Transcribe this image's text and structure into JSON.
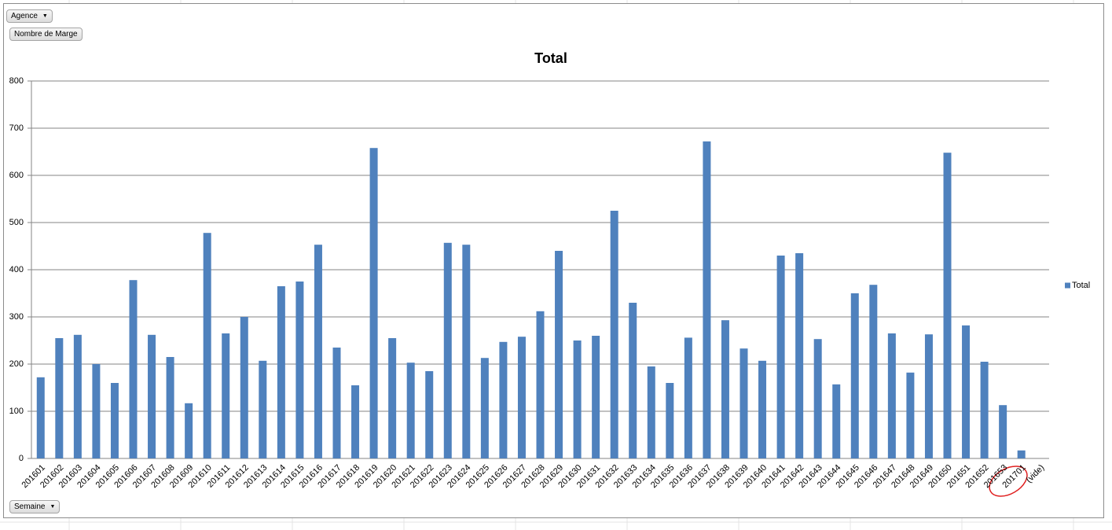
{
  "field_buttons": {
    "filter": "Agence",
    "values": "Nombre de Marge",
    "axis": "Semaine"
  },
  "chart_data": {
    "type": "bar",
    "title": "Total",
    "categories": [
      "201601",
      "201602",
      "201603",
      "201604",
      "201605",
      "201606",
      "201607",
      "201608",
      "201609",
      "201610",
      "201611",
      "201612",
      "201613",
      "201614",
      "201615",
      "201616",
      "201617",
      "201618",
      "201619",
      "201620",
      "201621",
      "201622",
      "201623",
      "201624",
      "201625",
      "201626",
      "201627",
      "201628",
      "201629",
      "201630",
      "201631",
      "201632",
      "201633",
      "201634",
      "201635",
      "201636",
      "201637",
      "201638",
      "201639",
      "201640",
      "201641",
      "201642",
      "201643",
      "201644",
      "201645",
      "201646",
      "201647",
      "201648",
      "201649",
      "201650",
      "201651",
      "201652",
      "201653",
      "201701",
      "(vide)"
    ],
    "series": [
      {
        "name": "Total",
        "color": "#4f81bd",
        "values": [
          172,
          255,
          262,
          200,
          160,
          378,
          262,
          215,
          117,
          478,
          265,
          300,
          207,
          365,
          375,
          453,
          235,
          155,
          658,
          255,
          203,
          185,
          457,
          453,
          213,
          247,
          258,
          312,
          440,
          250,
          260,
          525,
          330,
          195,
          160,
          256,
          672,
          293,
          233,
          207,
          430,
          435,
          253,
          157,
          350,
          368,
          265,
          182,
          263,
          648,
          282,
          205,
          113,
          17,
          null
        ]
      }
    ],
    "ylim": [
      0,
      800
    ],
    "yticks": [
      0,
      100,
      200,
      300,
      400,
      500,
      600,
      700,
      800
    ],
    "grid": true,
    "legend": "right"
  }
}
